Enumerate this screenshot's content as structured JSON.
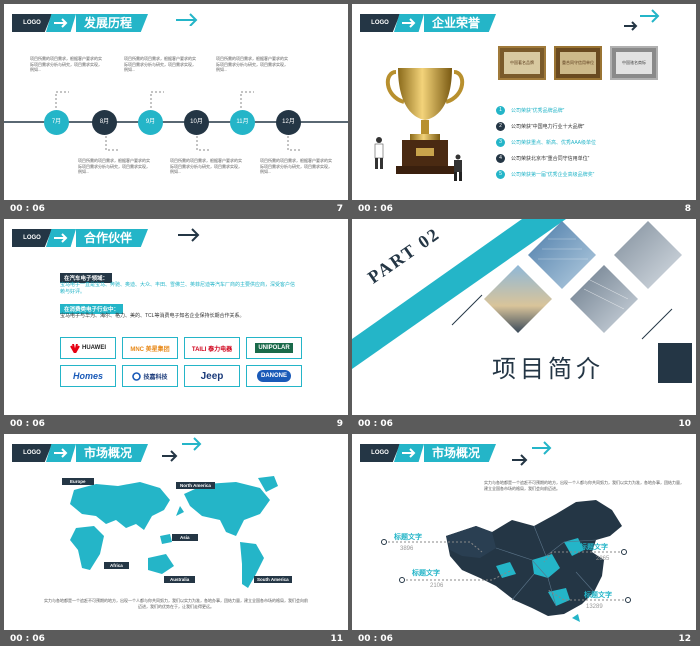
{
  "slides": [
    {
      "time": "00 : 06",
      "num": "7",
      "logo": "LOGO",
      "title": "发展历程",
      "months": [
        "7月",
        "8月",
        "9月",
        "10月",
        "11月",
        "12月"
      ],
      "blurb": "项目所需的项目需求，根据客户要求的实际项目需求分析与研究，项目需求实现，例如..."
    },
    {
      "time": "00 : 06",
      "num": "8",
      "logo": "LOGO",
      "title": "企业荣誉",
      "certs": [
        "中国著名品牌",
        "重合同守信用单位",
        "中国驰名商标"
      ],
      "honors": [
        "公司荣获“优秀品牌品牌”",
        "公司荣获“中国电力行业十大品牌”",
        "公司荣获重点、新高、优秀AAA级单位",
        "公司荣获北京市“重合同守信用单位”",
        "公司荣获第一届“优秀企业高级品牌奖”"
      ]
    },
    {
      "time": "00 : 06",
      "num": "9",
      "logo": "LOGO",
      "title": "合作伙伴",
      "auto_label": "在汽车电子领域：",
      "auto_text": "宝马电子一直是宝马、奔驰、奥迪、大众、丰田、雪佛兰、英菲尼迪等汽车厂商的主要供应商，深受客户信赖与好评。",
      "consumer_label": "在消费类电子行业中：",
      "consumer_text": "宝马电子与华为、海尔、格力、美的、TCL等消费电子知名企业保持长期合作关系。",
      "brands": [
        "HUAWEI",
        "MNC 美星集团",
        "TAILI 泰力电器",
        "UNIPOLAR",
        "Homes",
        "技嘉科技",
        "Jeep",
        "DANONE"
      ]
    },
    {
      "time": "00 : 06",
      "num": "10",
      "part": "PART 02",
      "subtitle": "项目简介"
    },
    {
      "time": "00 : 06",
      "num": "11",
      "logo": "LOGO",
      "title": "市场概况",
      "regions": [
        "Europe",
        "North America",
        "Asia",
        "Africa",
        "Australia",
        "South America"
      ],
      "body": "实力与各地都是一个追赶不可预期的地方，出现一个人都与你共同努力，我们以实力为准，各地办事，团结力量，建立全国各市场的格局，我们会向前迈进，我们的优势在于，让我们走得更远。"
    },
    {
      "time": "00 : 06",
      "num": "12",
      "logo": "LOGO",
      "title": "市场概况",
      "intro": "实力与各地都是一个追赶不可预期的地方，出现一个人都与你共同努力，我们以实力为准，各地办事，团结力量，建立全国各市场的格局，我们会向前迈进。",
      "labels": [
        {
          "text": "标题文字",
          "value": "3896"
        },
        {
          "text": "标题文字",
          "value": "2865"
        },
        {
          "text": "标题文字",
          "value": "2106"
        },
        {
          "text": "标题文字",
          "value": "13289"
        }
      ]
    }
  ],
  "colors": {
    "teal": "#24b5c8",
    "navy": "#243645",
    "bg": "#5b5b5b"
  }
}
